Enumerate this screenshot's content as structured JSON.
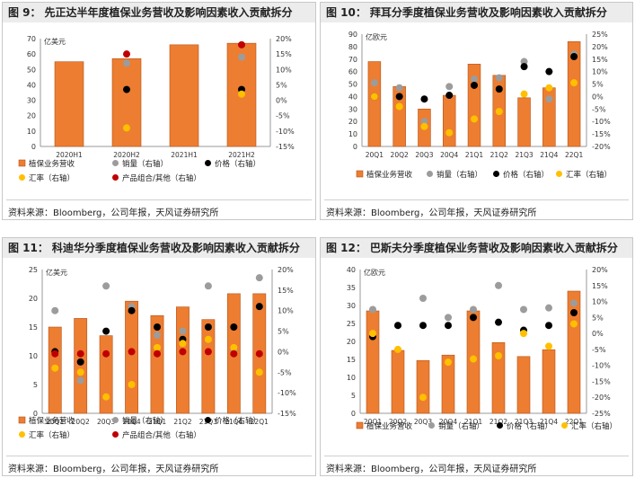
{
  "colors": {
    "bar": "#ed7d31",
    "bar_edge": "#b45418",
    "volume": "#9c9c9c",
    "price": "#000000",
    "fx": "#ffc000",
    "mix": "#c00000"
  },
  "chart_data": [
    {
      "type": "bar",
      "fig_label": "图 9：",
      "title": "先正达半年度植保业务营收及影响因素收入贡献拆分",
      "unit": "亿美元",
      "categories": [
        "2020H1",
        "2020H2",
        "2021H1",
        "2021H2"
      ],
      "values": [
        55,
        57,
        66,
        67
      ],
      "ylim": [
        0,
        70
      ],
      "yticks": [
        "0",
        "10",
        "20",
        "30",
        "40",
        "50",
        "60",
        "70"
      ],
      "y2lim": [
        -15,
        20
      ],
      "y2ticks": [
        "-15%",
        "-10%",
        "-5%",
        "0%",
        "5%",
        "10%",
        "15%",
        "20%"
      ],
      "series": [
        {
          "name": "销量（右轴）",
          "key": "volume",
          "values": [
            null,
            12,
            null,
            14
          ]
        },
        {
          "name": "价格（右轴）",
          "key": "price",
          "values": [
            null,
            3.5,
            null,
            3.5
          ]
        },
        {
          "name": "汇率（右轴）",
          "key": "fx",
          "values": [
            null,
            -9,
            null,
            2
          ]
        },
        {
          "name": "产品组合/其他（右轴）",
          "key": "mix",
          "values": [
            null,
            15,
            null,
            18
          ]
        }
      ],
      "legend": [
        "植保业务营收",
        "销量（右轴）",
        "价格（右轴）",
        "汇率（右轴）",
        "产品组合/其他（右轴）"
      ],
      "source": "资料来源：Bloomberg，公司年报，天风证券研究所"
    },
    {
      "type": "bar",
      "fig_label": "图 10：",
      "title": "拜耳分季度植保业务营收及影响因素收入贡献拆分",
      "unit": "亿欧元",
      "categories": [
        "20Q1",
        "20Q2",
        "20Q3",
        "20Q4",
        "21Q1",
        "21Q2",
        "21Q3",
        "21Q4",
        "22Q1"
      ],
      "values": [
        68,
        48,
        30,
        41,
        66,
        57,
        39,
        47,
        84
      ],
      "ylim": [
        0,
        90
      ],
      "yticks": [
        "0",
        "10",
        "20",
        "30",
        "40",
        "50",
        "60",
        "70",
        "80",
        "90"
      ],
      "y2lim": [
        -20,
        25
      ],
      "y2ticks": [
        "-20%",
        "-15%",
        "-10%",
        "-5%",
        "0%",
        "5%",
        "10%",
        "15%",
        "20%",
        "25%"
      ],
      "series": [
        {
          "name": "销量（右轴）",
          "key": "volume",
          "values": [
            5.5,
            3.5,
            -10,
            4,
            7,
            7.5,
            14,
            -1,
            17
          ]
        },
        {
          "name": "价格（右轴）",
          "key": "price",
          "values": [
            0,
            0,
            -1,
            0.5,
            4.5,
            3,
            12,
            10,
            16
          ]
        },
        {
          "name": "汇率（右轴）",
          "key": "fx",
          "values": [
            0,
            -4,
            -12,
            -14.5,
            -9,
            -6,
            1,
            3.5,
            5.5
          ]
        }
      ],
      "legend": [
        "植保业务营收",
        "销量（右轴）",
        "价格（右轴）",
        "汇率（右轴）"
      ],
      "source": "资料来源：Bloomberg，公司年报，天风证券研究所"
    },
    {
      "type": "bar",
      "fig_label": "图 11：",
      "title": "科迪华分季度植保业务营收及影响因素收入贡献拆分",
      "unit": "亿美元",
      "categories": [
        "20Q1",
        "20Q2",
        "20Q3",
        "20Q4",
        "21Q1",
        "21Q2",
        "21Q3",
        "21Q4",
        "22Q1"
      ],
      "values": [
        15,
        16.5,
        13.5,
        19.5,
        17,
        18.5,
        16.3,
        20.8,
        20.8
      ],
      "ylim": [
        0,
        25
      ],
      "yticks": [
        "0",
        "5",
        "10",
        "15",
        "20",
        "25"
      ],
      "y2lim": [
        -15,
        20
      ],
      "y2ticks": [
        "-15%",
        "-10%",
        "-5%",
        "0%",
        "5%",
        "10%",
        "15%",
        "20%"
      ],
      "series": [
        {
          "name": "销量（右轴）",
          "key": "volume",
          "values": [
            10,
            -7,
            16,
            11,
            4,
            5,
            16,
            0.5,
            18
          ]
        },
        {
          "name": "价格（右轴）",
          "key": "price",
          "values": [
            0,
            -2.5,
            5,
            10,
            6,
            3,
            6,
            6,
            11
          ]
        },
        {
          "name": "汇率（右轴）",
          "key": "fx",
          "values": [
            -4,
            -5,
            -11,
            -8,
            1,
            2,
            3,
            1,
            -5
          ]
        },
        {
          "name": "产品组合/其他（右轴）",
          "key": "mix",
          "values": [
            -0.5,
            -0.5,
            -0.5,
            0,
            -0.5,
            0,
            0,
            -0.5,
            -0.5
          ]
        }
      ],
      "legend": [
        "植保业务营收",
        "销量（右轴）",
        "价格（右轴）",
        "汇率（右轴）",
        "产品组合/其他（右轴）"
      ],
      "source": "资料来源：Bloomberg，公司年报，天风证券研究所"
    },
    {
      "type": "bar",
      "fig_label": "图 12：",
      "title": "巴斯夫分季度植保业务营收及影响因素收入贡献拆分",
      "unit": "亿欧元",
      "categories": [
        "20Q1",
        "20Q2",
        "20Q3",
        "20Q4",
        "21Q1",
        "21Q2",
        "21Q3",
        "21Q4",
        "22Q1"
      ],
      "values": [
        28.5,
        17.5,
        14.7,
        16.2,
        28.5,
        19.7,
        15.8,
        17.7,
        34
      ],
      "ylim": [
        0,
        40
      ],
      "yticks": [
        "0",
        "5",
        "10",
        "15",
        "20",
        "25",
        "30",
        "35",
        "40"
      ],
      "y2lim": [
        -25,
        20
      ],
      "y2ticks": [
        "-25%",
        "-20%",
        "-15%",
        "-10%",
        "-5%",
        "0%",
        "5%",
        "10%",
        "15%",
        "20%"
      ],
      "series": [
        {
          "name": "销量（右轴）",
          "key": "volume",
          "values": [
            7.5,
            2.5,
            11,
            5,
            7.5,
            15,
            7.5,
            8,
            9.5
          ]
        },
        {
          "name": "价格（右轴）",
          "key": "price",
          "values": [
            -1,
            2.5,
            2.5,
            2.5,
            5,
            3.5,
            1,
            2.5,
            6.5
          ]
        },
        {
          "name": "汇率（右轴）",
          "key": "fx",
          "values": [
            0,
            -5,
            -20,
            -9,
            -8,
            -7,
            0,
            -4,
            3
          ]
        }
      ],
      "legend": [
        "植保业务营收",
        "销量（右轴）",
        "价格（右轴）",
        "汇率（右轴）"
      ],
      "source": "资料来源：Bloomberg，公司年报，天风证券研究所"
    }
  ]
}
